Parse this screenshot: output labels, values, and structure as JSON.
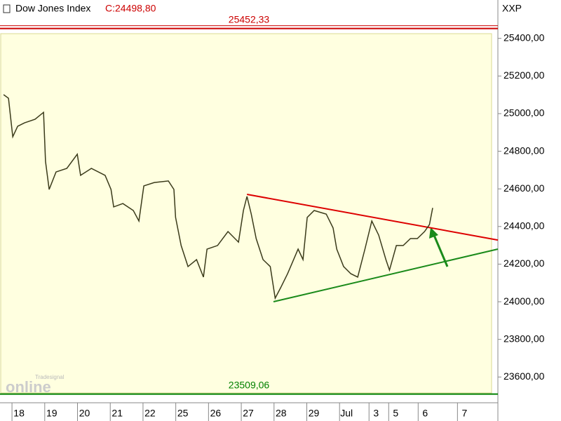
{
  "chart_data": {
    "type": "line",
    "title": "Dow Jones Index",
    "close_label": "C:24498,80",
    "axis_title": "XXP",
    "watermark": [
      "Tradesignal",
      "online"
    ],
    "series": [
      {
        "name": "Dow Jones Index",
        "color": "#3a3a1a",
        "x": [
          -0.47,
          -0.32,
          -0.19,
          -0.04,
          0.17,
          0.49,
          0.75,
          0.81,
          0.92,
          1.13,
          1.46,
          1.78,
          1.88,
          2.21,
          2.63,
          2.81,
          2.89,
          3.17,
          3.49,
          3.66,
          3.81,
          4.13,
          4.56,
          4.73,
          4.78,
          4.95,
          5.16,
          5.42,
          5.63,
          5.74,
          6.06,
          6.38,
          6.7,
          6.85,
          6.96,
          7.09,
          7.24,
          7.45,
          7.67,
          7.82,
          7.99,
          8.2,
          8.52,
          8.67,
          8.8,
          9.01,
          9.38,
          9.59,
          9.7,
          9.91,
          10.13,
          10.34,
          10.56,
          10.77,
          10.98,
          11.2,
          11.31,
          11.52,
          11.73,
          11.95,
          12.16,
          12.38,
          12.53,
          12.63
        ],
        "values": [
          25101,
          25082,
          24877,
          24933,
          24951,
          24970,
          25007,
          24746,
          24597,
          24690,
          24709,
          24784,
          24672,
          24709,
          24672,
          24597,
          24504,
          24522,
          24485,
          24429,
          24616,
          24634,
          24642,
          24597,
          24448,
          24299,
          24187,
          24224,
          24131,
          24280,
          24299,
          24373,
          24317,
          24485,
          24560,
          24466,
          24336,
          24224,
          24187,
          24019,
          24075,
          24149,
          24280,
          24224,
          24448,
          24485,
          24466,
          24392,
          24280,
          24187,
          24149,
          24131,
          24280,
          24429,
          24354,
          24224,
          24168,
          24299,
          24299,
          24336,
          24336,
          24373,
          24410,
          24498.8
        ]
      }
    ],
    "levels": [
      {
        "value": 25452.33,
        "label": "25452,33",
        "color": "#cc0000"
      },
      {
        "value": 23509.06,
        "label": "23509,06",
        "color": "#008000"
      }
    ],
    "trendlines": [
      {
        "color": "#dd0000",
        "x": [
          6.96,
          14.62
        ],
        "values": [
          24571,
          24328
        ]
      },
      {
        "color": "#1a8a1a",
        "x": [
          7.77,
          14.62
        ],
        "values": [
          24000,
          24280
        ]
      }
    ],
    "xlim": [
      -0.58,
      14.62
    ],
    "xticks": [
      {
        "value": 0,
        "label": "18"
      },
      {
        "value": 1,
        "label": "19"
      },
      {
        "value": 2,
        "label": "20"
      },
      {
        "value": 3,
        "label": "21"
      },
      {
        "value": 4,
        "label": "22"
      },
      {
        "value": 5,
        "label": "25"
      },
      {
        "value": 6,
        "label": "26"
      },
      {
        "value": 7,
        "label": "27"
      },
      {
        "value": 8,
        "label": "28"
      },
      {
        "value": 9,
        "label": "29"
      },
      {
        "value": 10,
        "label": "Jul"
      },
      {
        "value": 10.9,
        "label": "3"
      },
      {
        "value": 11.5,
        "label": "5"
      },
      {
        "value": 12.4,
        "label": "6"
      },
      {
        "value": 13.6,
        "label": "7"
      }
    ],
    "ylim": [
      23478,
      25604
    ],
    "yticks": [
      {
        "value": 23600,
        "label": "23600,00"
      },
      {
        "value": 23800,
        "label": "23800,00"
      },
      {
        "value": 24000,
        "label": "24000,00"
      },
      {
        "value": 24200,
        "label": "24200,00"
      },
      {
        "value": 24400,
        "label": "24400,00"
      },
      {
        "value": 24600,
        "label": "24600,00"
      },
      {
        "value": 24800,
        "label": "24800,00"
      },
      {
        "value": 25000,
        "label": "25000,00"
      },
      {
        "value": 25200,
        "label": "25200,00"
      },
      {
        "value": 25400,
        "label": "25400,00"
      }
    ]
  }
}
